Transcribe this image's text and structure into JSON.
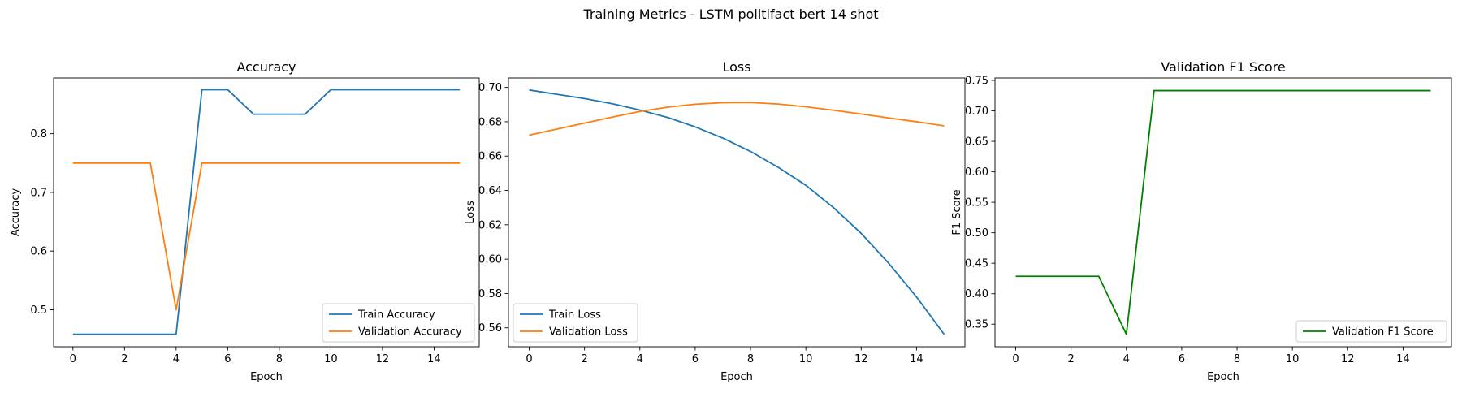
{
  "figure": {
    "suptitle": "Training Metrics - LSTM politifact bert 14 shot"
  },
  "colors": {
    "train": "#1f77b4",
    "validation": "#ff7f0e",
    "f1": "#008000",
    "axes": "#000000",
    "legend_border": "#cccccc"
  },
  "chart_data": [
    {
      "type": "line",
      "title": "Accuracy",
      "xlabel": "Epoch",
      "ylabel": "Accuracy",
      "xlim": [
        -0.75,
        15.75
      ],
      "ylim": [
        0.437,
        0.895
      ],
      "xticks": [
        0,
        2,
        4,
        6,
        8,
        10,
        12,
        14
      ],
      "yticks": [
        0.5,
        0.6,
        0.7,
        0.8
      ],
      "ytick_labels": [
        "0.5",
        "0.6",
        "0.7",
        "0.8"
      ],
      "legend_loc": "lower right",
      "grid": false,
      "x": [
        0,
        1,
        2,
        3,
        4,
        5,
        6,
        7,
        8,
        9,
        10,
        11,
        12,
        13,
        14,
        15
      ],
      "series": [
        {
          "name": "Train Accuracy",
          "color": "#1f77b4",
          "values": [
            0.4583,
            0.4583,
            0.4583,
            0.4583,
            0.4583,
            0.875,
            0.875,
            0.8333,
            0.8333,
            0.8333,
            0.875,
            0.875,
            0.875,
            0.875,
            0.875,
            0.875
          ]
        },
        {
          "name": "Validation Accuracy",
          "color": "#ff7f0e",
          "values": [
            0.75,
            0.75,
            0.75,
            0.75,
            0.5,
            0.75,
            0.75,
            0.75,
            0.75,
            0.75,
            0.75,
            0.75,
            0.75,
            0.75,
            0.75,
            0.75
          ]
        }
      ]
    },
    {
      "type": "line",
      "title": "Loss",
      "xlabel": "Epoch",
      "ylabel": "Loss",
      "xlim": [
        -0.75,
        15.75
      ],
      "ylim": [
        0.549,
        0.7055
      ],
      "xticks": [
        0,
        2,
        4,
        6,
        8,
        10,
        12,
        14
      ],
      "yticks": [
        0.56,
        0.58,
        0.6,
        0.62,
        0.64,
        0.66,
        0.68,
        0.7
      ],
      "ytick_labels": [
        "0.56",
        "0.58",
        "0.60",
        "0.62",
        "0.64",
        "0.66",
        "0.68",
        "0.70"
      ],
      "legend_loc": "lower left",
      "grid": false,
      "x": [
        0,
        1,
        2,
        3,
        4,
        5,
        6,
        7,
        8,
        9,
        10,
        11,
        12,
        13,
        14,
        15
      ],
      "series": [
        {
          "name": "Train Loss",
          "color": "#1f77b4",
          "values": [
            0.6985,
            0.696,
            0.6935,
            0.6905,
            0.6868,
            0.6825,
            0.677,
            0.6705,
            0.6627,
            0.6535,
            0.643,
            0.63,
            0.615,
            0.5975,
            0.578,
            0.5562
          ]
        },
        {
          "name": "Validation Loss",
          "color": "#ff7f0e",
          "values": [
            0.6722,
            0.6757,
            0.6792,
            0.6827,
            0.686,
            0.6885,
            0.6902,
            0.6911,
            0.6912,
            0.6903,
            0.6887,
            0.6867,
            0.6845,
            0.6822,
            0.68,
            0.6776
          ]
        }
      ]
    },
    {
      "type": "line",
      "title": "Validation F1 Score",
      "xlabel": "Epoch",
      "ylabel": "F1 Score",
      "xlim": [
        -0.75,
        15.75
      ],
      "ylim": [
        0.313,
        0.754
      ],
      "xticks": [
        0,
        2,
        4,
        6,
        8,
        10,
        12,
        14
      ],
      "yticks": [
        0.35,
        0.4,
        0.45,
        0.5,
        0.55,
        0.6,
        0.65,
        0.7,
        0.75
      ],
      "ytick_labels": [
        "0.35",
        "0.40",
        "0.45",
        "0.50",
        "0.55",
        "0.60",
        "0.65",
        "0.70",
        "0.75"
      ],
      "legend_loc": "lower right",
      "grid": false,
      "x": [
        0,
        1,
        2,
        3,
        4,
        5,
        6,
        7,
        8,
        9,
        10,
        11,
        12,
        13,
        14,
        15
      ],
      "series": [
        {
          "name": "Validation F1 Score",
          "color": "#008000",
          "values": [
            0.4286,
            0.4286,
            0.4286,
            0.4286,
            0.3333,
            0.7333,
            0.7333,
            0.7333,
            0.7333,
            0.7333,
            0.7333,
            0.7333,
            0.7333,
            0.7333,
            0.7333,
            0.7333
          ]
        }
      ]
    }
  ]
}
